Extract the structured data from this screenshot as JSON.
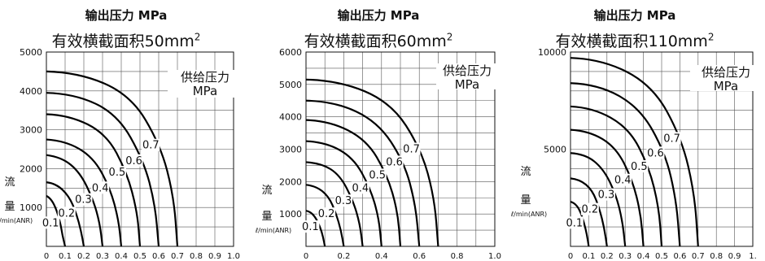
{
  "chart_data": [
    {
      "type": "line",
      "title": "输出压力  MPa",
      "subtitle": "有效横截面积50mm",
      "subtitle_sup": "2",
      "ylabel_chars": [
        "流",
        "量"
      ],
      "yunit": "ℓ/min(ANR)",
      "legend_title": [
        "供给压力",
        "MPa"
      ],
      "xlim": [
        0,
        1.0
      ],
      "ylim": [
        0,
        5000
      ],
      "x_ticks": [
        "0",
        "0.1",
        "0.2",
        "0.3",
        "0.4",
        "0.5",
        "0.6",
        "0.7",
        "0.8",
        "0.9",
        "1.0"
      ],
      "y_ticks": [
        "1000",
        "2000",
        "3000",
        "4000",
        "5000"
      ],
      "grid": true,
      "series": [
        {
          "name": "0.1",
          "x": [
            0,
            0.02,
            0.05,
            0.075,
            0.085,
            0.1
          ],
          "y": [
            1300,
            1250,
            1000,
            600,
            300,
            0
          ]
        },
        {
          "name": "0.2",
          "x": [
            0,
            0.05,
            0.12,
            0.16,
            0.185,
            0.2
          ],
          "y": [
            1650,
            1620,
            1300,
            850,
            400,
            0
          ]
        },
        {
          "name": "0.3",
          "x": [
            0,
            0.08,
            0.18,
            0.25,
            0.285,
            0.3
          ],
          "y": [
            2350,
            2300,
            1900,
            1200,
            600,
            0
          ]
        },
        {
          "name": "0.4",
          "x": [
            0,
            0.1,
            0.25,
            0.34,
            0.385,
            0.4
          ],
          "y": [
            2750,
            2720,
            2300,
            1500,
            700,
            0
          ]
        },
        {
          "name": "0.5",
          "x": [
            0,
            0.12,
            0.32,
            0.43,
            0.485,
            0.5
          ],
          "y": [
            3400,
            3380,
            2900,
            1900,
            900,
            0
          ]
        },
        {
          "name": "0.6",
          "x": [
            0,
            0.15,
            0.38,
            0.52,
            0.58,
            0.6
          ],
          "y": [
            3950,
            3930,
            3400,
            2200,
            1100,
            0
          ]
        },
        {
          "name": "0.7",
          "x": [
            0,
            0.17,
            0.45,
            0.61,
            0.68,
            0.7
          ],
          "y": [
            4500,
            4480,
            3900,
            2600,
            1300,
            0
          ]
        }
      ]
    },
    {
      "type": "line",
      "title": "输出压力  MPa",
      "subtitle": "有效横截面积60mm",
      "subtitle_sup": "2",
      "ylabel_chars": [
        "流",
        "量"
      ],
      "yunit": "ℓ/min(ANR)",
      "legend_title": [
        "供给压力",
        "MPa"
      ],
      "xlim": [
        0,
        1.0
      ],
      "ylim": [
        0,
        6000
      ],
      "x_ticks": [
        "0",
        "0.2",
        "0.4",
        "0.6",
        "0.8",
        "1.0"
      ],
      "y_ticks": [
        "1000",
        "2000",
        "3000",
        "4000",
        "5000",
        "6000"
      ],
      "grid": true,
      "series": [
        {
          "name": "0.1",
          "x": [
            0,
            0.02,
            0.05,
            0.075,
            0.09,
            0.1
          ],
          "y": [
            1100,
            1080,
            900,
            600,
            300,
            0
          ]
        },
        {
          "name": "0.2",
          "x": [
            0,
            0.05,
            0.12,
            0.16,
            0.185,
            0.2
          ],
          "y": [
            1900,
            1870,
            1550,
            1000,
            500,
            0
          ]
        },
        {
          "name": "0.3",
          "x": [
            0,
            0.08,
            0.18,
            0.25,
            0.285,
            0.3
          ],
          "y": [
            2600,
            2570,
            2200,
            1400,
            700,
            0
          ]
        },
        {
          "name": "0.4",
          "x": [
            0,
            0.1,
            0.25,
            0.34,
            0.385,
            0.4
          ],
          "y": [
            3250,
            3220,
            2750,
            1800,
            900,
            0
          ]
        },
        {
          "name": "0.5",
          "x": [
            0,
            0.12,
            0.32,
            0.43,
            0.485,
            0.5
          ],
          "y": [
            3900,
            3880,
            3300,
            2200,
            1100,
            0
          ]
        },
        {
          "name": "0.6",
          "x": [
            0,
            0.15,
            0.38,
            0.52,
            0.58,
            0.6
          ],
          "y": [
            4500,
            4480,
            3850,
            2600,
            1300,
            0
          ]
        },
        {
          "name": "0.7",
          "x": [
            0,
            0.17,
            0.45,
            0.61,
            0.68,
            0.7
          ],
          "y": [
            5150,
            5130,
            4450,
            3000,
            1500,
            0
          ]
        }
      ]
    },
    {
      "type": "line",
      "title": "输出压力  MPa",
      "subtitle": "有效横截面积110mm",
      "subtitle_sup": "2",
      "ylabel_chars": [
        "流",
        "量"
      ],
      "yunit": "ℓ/min(ANR)",
      "legend_title": [
        "供给压力",
        "MPa"
      ],
      "xlim": [
        0,
        1.0
      ],
      "ylim": [
        0,
        10000
      ],
      "x_ticks": [
        "0",
        "0.1",
        "0.2",
        "0.3",
        "0.4",
        "0.5",
        "0.6",
        "0.7",
        "0.8",
        "0.9",
        "1."
      ],
      "y_ticks": [
        "5000",
        "10000"
      ],
      "grid": true,
      "series": [
        {
          "name": "0.1",
          "x": [
            0,
            0.02,
            0.05,
            0.075,
            0.09,
            0.1
          ],
          "y": [
            2300,
            2250,
            1900,
            1200,
            600,
            0
          ]
        },
        {
          "name": "0.2",
          "x": [
            0,
            0.05,
            0.12,
            0.16,
            0.185,
            0.2
          ],
          "y": [
            3500,
            3450,
            2900,
            1900,
            950,
            0
          ]
        },
        {
          "name": "0.3",
          "x": [
            0,
            0.08,
            0.18,
            0.25,
            0.285,
            0.3
          ],
          "y": [
            4800,
            4750,
            4000,
            2650,
            1300,
            0
          ]
        },
        {
          "name": "0.4",
          "x": [
            0,
            0.1,
            0.25,
            0.34,
            0.385,
            0.4
          ],
          "y": [
            6000,
            5950,
            5100,
            3400,
            1700,
            0
          ]
        },
        {
          "name": "0.5",
          "x": [
            0,
            0.12,
            0.32,
            0.43,
            0.485,
            0.5
          ],
          "y": [
            7200,
            7150,
            6100,
            4100,
            2000,
            0
          ]
        },
        {
          "name": "0.6",
          "x": [
            0,
            0.15,
            0.38,
            0.52,
            0.58,
            0.6
          ],
          "y": [
            8400,
            8350,
            7150,
            4800,
            2400,
            0
          ]
        },
        {
          "name": "0.7",
          "x": [
            0,
            0.17,
            0.45,
            0.61,
            0.68,
            0.7
          ],
          "y": [
            9700,
            9650,
            8300,
            5550,
            2750,
            0
          ]
        }
      ]
    }
  ]
}
